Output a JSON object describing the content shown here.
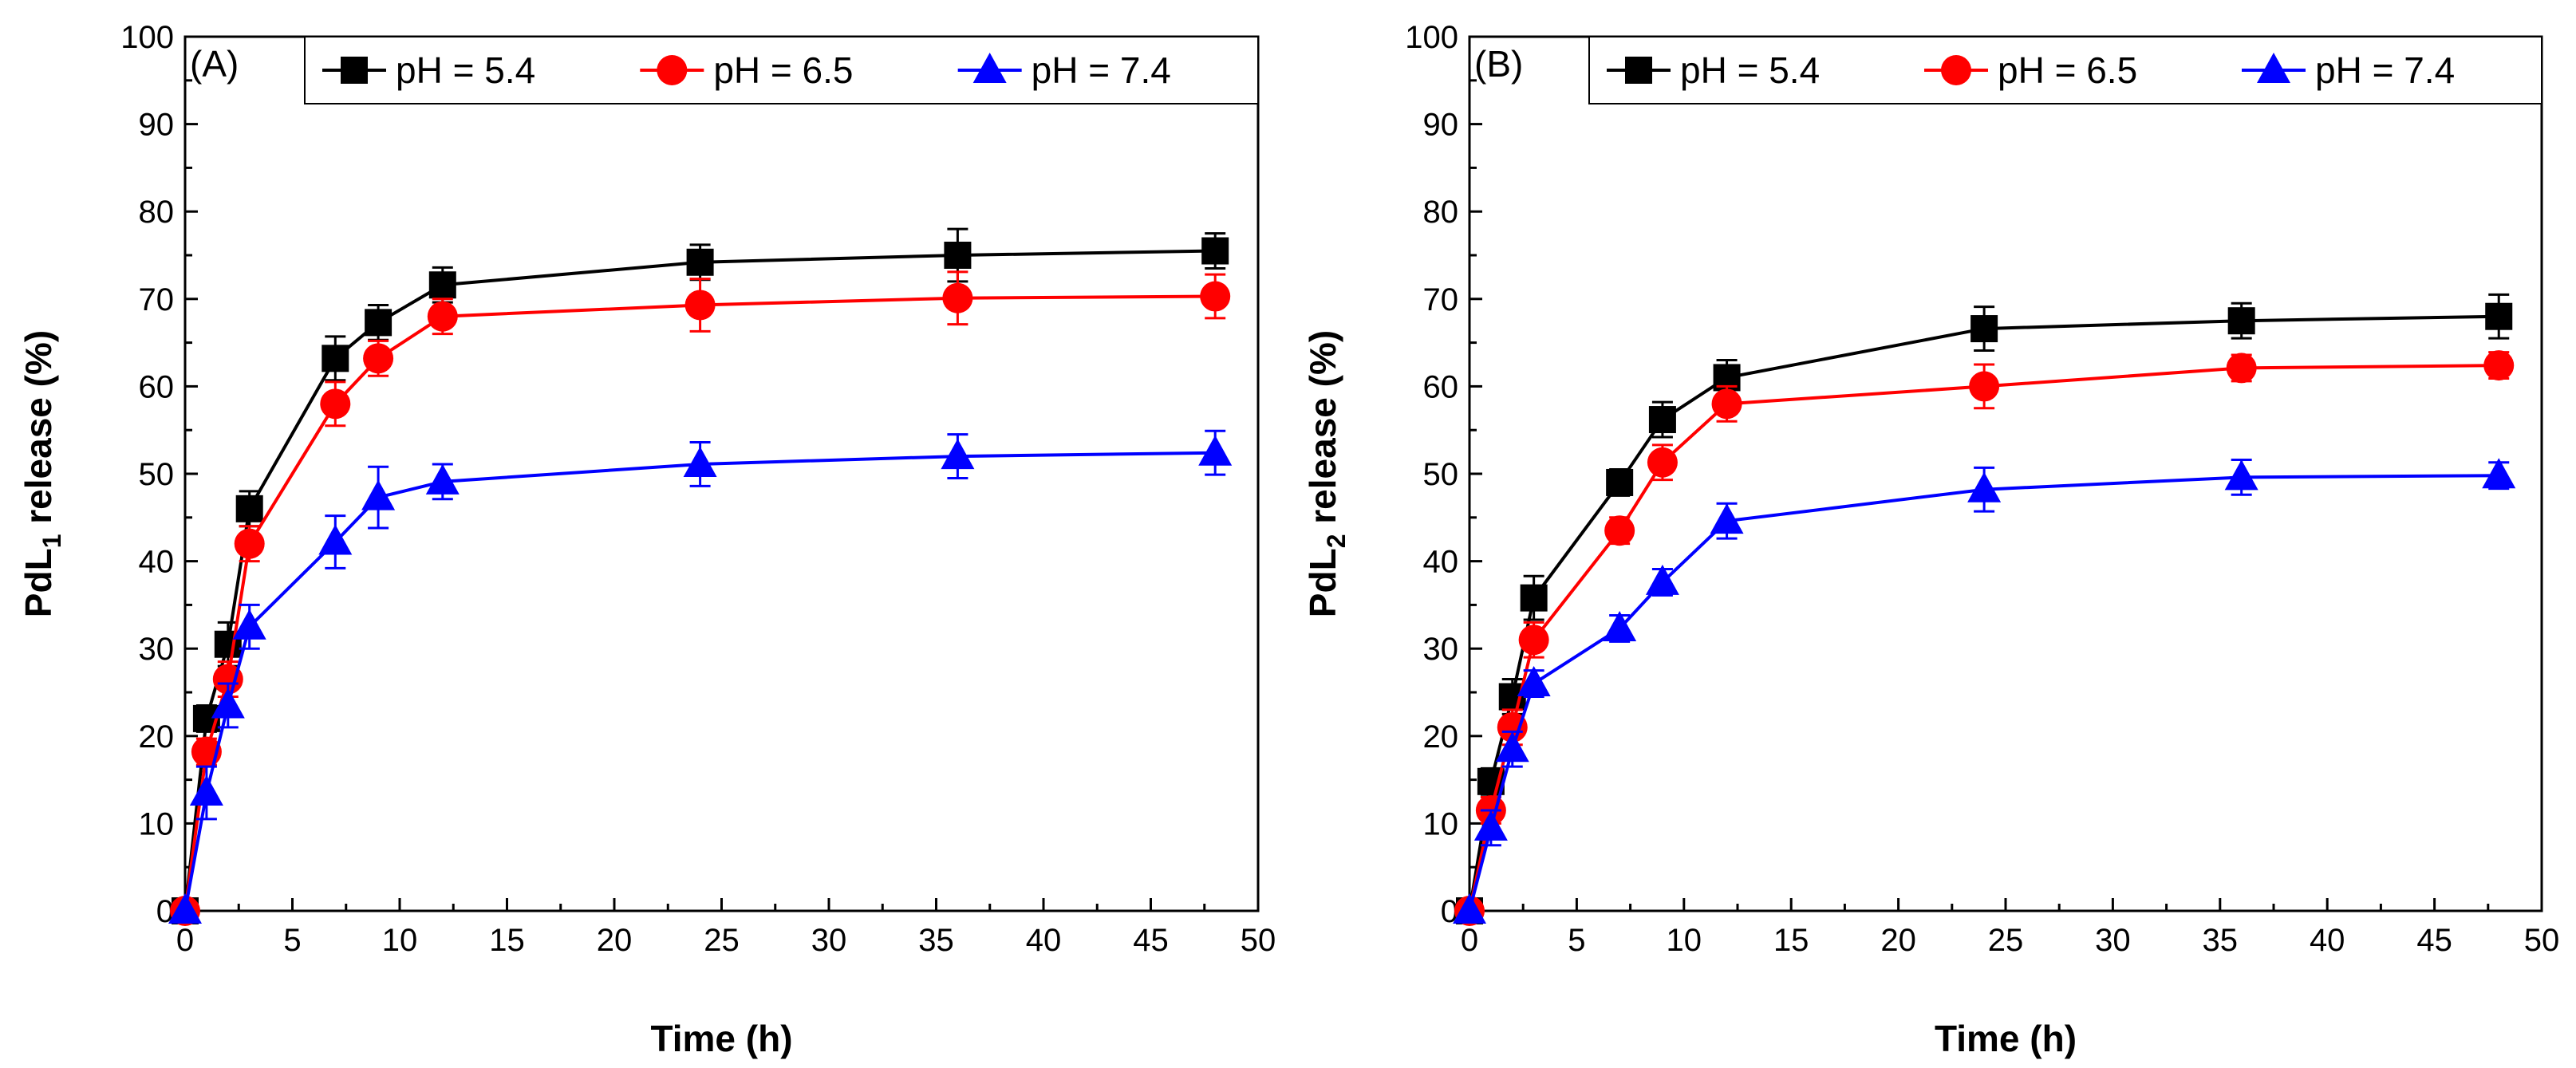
{
  "chart_data": [
    {
      "type": "line",
      "panel_label": "(A)",
      "xlabel": "Time (h)",
      "ylabel_main": "PdL",
      "ylabel_sub": "1",
      "ylabel_tail": " release (%)",
      "xlim": [
        0,
        50
      ],
      "ylim": [
        0,
        100
      ],
      "x_ticks": [
        0,
        5,
        10,
        15,
        20,
        25,
        30,
        35,
        40,
        45,
        50
      ],
      "y_ticks": [
        0,
        10,
        20,
        30,
        40,
        50,
        60,
        70,
        80,
        90,
        100
      ],
      "legend_position": "top-right",
      "x": [
        0,
        1,
        2,
        3,
        7,
        9,
        12,
        24,
        36,
        48
      ],
      "series": [
        {
          "name": "pH = 5.4",
          "color": "#000000",
          "marker": "square",
          "values": [
            0,
            22,
            30.5,
            46,
            63.2,
            67.3,
            71.6,
            74.2,
            75,
            75.5
          ],
          "errors": [
            0,
            1.5,
            2.5,
            2,
            2.5,
            2,
            2,
            2,
            3,
            2
          ]
        },
        {
          "name": "pH = 6.5",
          "color": "#ff0000",
          "marker": "circle",
          "values": [
            0,
            18.2,
            26.5,
            42,
            58,
            63.2,
            68,
            69.3,
            70.1,
            70.3
          ],
          "errors": [
            0,
            1.5,
            2,
            2,
            2.5,
            2,
            2,
            3,
            3,
            2.5
          ]
        },
        {
          "name": "pH = 7.4",
          "color": "#0000ff",
          "marker": "triangle",
          "values": [
            0,
            13.5,
            23.5,
            32.5,
            42.2,
            47.3,
            49.1,
            51.1,
            52,
            52.4
          ],
          "errors": [
            0,
            3,
            2.5,
            2.5,
            3,
            3.5,
            2,
            2.5,
            2.5,
            2.5
          ]
        }
      ]
    },
    {
      "type": "line",
      "panel_label": "(B)",
      "xlabel": "Time (h)",
      "ylabel_main": "PdL",
      "ylabel_sub": "2",
      "ylabel_tail": " release (%)",
      "xlim": [
        0,
        50
      ],
      "ylim": [
        0,
        100
      ],
      "x_ticks": [
        0,
        5,
        10,
        15,
        20,
        25,
        30,
        35,
        40,
        45,
        50
      ],
      "y_ticks": [
        0,
        10,
        20,
        30,
        40,
        50,
        60,
        70,
        80,
        90,
        100
      ],
      "legend_position": "top-right",
      "x": [
        0,
        1,
        2,
        3,
        7,
        9,
        12,
        24,
        36,
        48
      ],
      "series": [
        {
          "name": "pH = 5.4",
          "color": "#000000",
          "marker": "square",
          "values": [
            0,
            14.8,
            24.5,
            35.8,
            49,
            56.2,
            61,
            66.6,
            67.5,
            68
          ],
          "errors": [
            0,
            1.5,
            2,
            2.5,
            1.5,
            2,
            2,
            2.5,
            2,
            2.5
          ]
        },
        {
          "name": "pH = 6.5",
          "color": "#ff0000",
          "marker": "circle",
          "values": [
            0,
            11.5,
            21,
            31,
            43.5,
            51.3,
            58,
            60,
            62.1,
            62.4
          ],
          "errors": [
            0,
            1.5,
            2,
            2,
            1.5,
            2,
            2,
            2.5,
            1.5,
            1.5
          ]
        },
        {
          "name": "pH = 7.4",
          "color": "#0000ff",
          "marker": "triangle",
          "values": [
            0,
            9.5,
            18.5,
            26,
            32.3,
            37.6,
            44.6,
            48.2,
            49.6,
            49.8
          ],
          "errors": [
            0,
            2,
            2,
            1.5,
            1.5,
            1.5,
            2,
            2.5,
            2,
            1.5
          ]
        }
      ]
    }
  ]
}
